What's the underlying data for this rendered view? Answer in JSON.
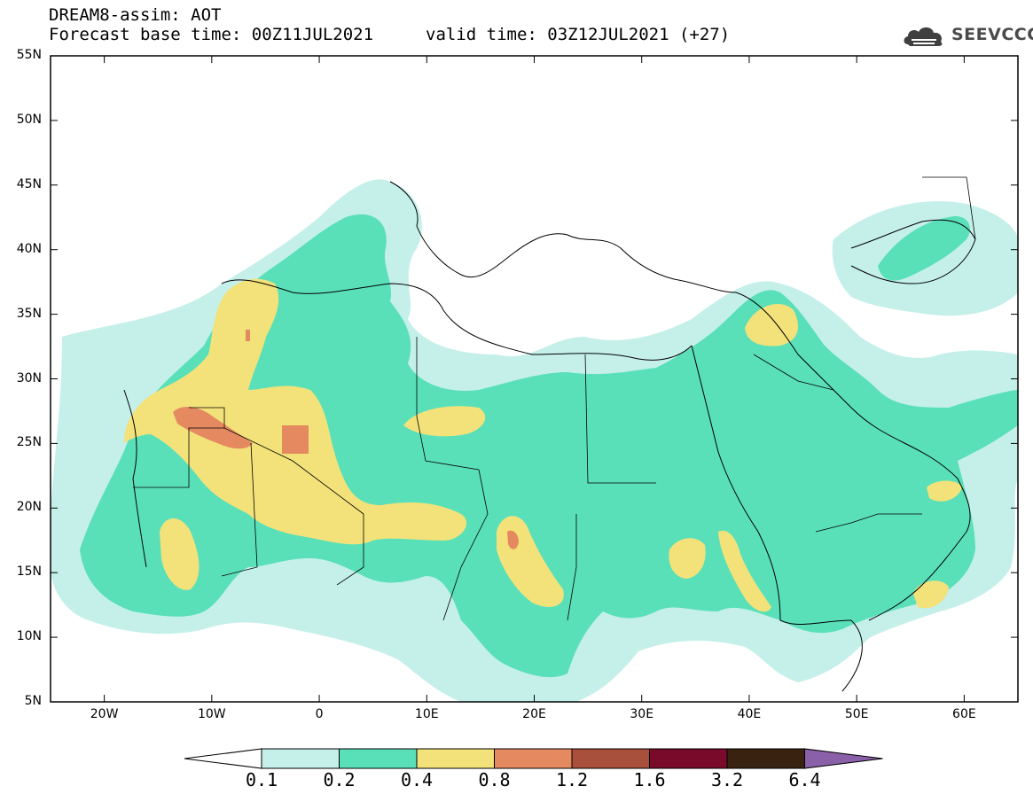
{
  "header": {
    "title": "DREAM8-assim: AOT",
    "base_time": "Forecast base time: 00Z11JUL2021",
    "valid_time": "valid time: 03Z12JUL2021 (+27)",
    "logo_text": "SEEVCCC",
    "logo_icon": "cloud-logo-icon"
  },
  "map": {
    "extent": {
      "lon_min": -25,
      "lon_max": 65,
      "lat_min": 5,
      "lat_max": 55
    },
    "lat_ticks": [
      {
        "lat": 55,
        "label": "55N"
      },
      {
        "lat": 50,
        "label": "50N"
      },
      {
        "lat": 45,
        "label": "45N"
      },
      {
        "lat": 40,
        "label": "40N"
      },
      {
        "lat": 35,
        "label": "35N"
      },
      {
        "lat": 30,
        "label": "30N"
      },
      {
        "lat": 25,
        "label": "25N"
      },
      {
        "lat": 20,
        "label": "20N"
      },
      {
        "lat": 15,
        "label": "15N"
      },
      {
        "lat": 10,
        "label": "10N"
      },
      {
        "lat": 5,
        "label": "5N"
      }
    ],
    "lon_ticks": [
      {
        "lon": -20,
        "label": "20W"
      },
      {
        "lon": -10,
        "label": "10W"
      },
      {
        "lon": 0,
        "label": "0"
      },
      {
        "lon": 10,
        "label": "10E"
      },
      {
        "lon": 20,
        "label": "20E"
      },
      {
        "lon": 30,
        "label": "30E"
      },
      {
        "lon": 40,
        "label": "40E"
      },
      {
        "lon": 50,
        "label": "50E"
      },
      {
        "lon": 60,
        "label": "60E"
      }
    ]
  },
  "colorbar": {
    "levels": [
      "0.1",
      "0.2",
      "0.4",
      "0.8",
      "1.2",
      "1.6",
      "3.2",
      "6.4"
    ],
    "colors": {
      "under": "#ffffff",
      "c1": "#c5f0ea",
      "c2": "#5ae0b8",
      "c3": "#f3e27a",
      "c4": "#e58a60",
      "c5": "#a8503c",
      "c6": "#7a0a2a",
      "c7": "#3a2210",
      "over": "#8a60a8"
    }
  }
}
